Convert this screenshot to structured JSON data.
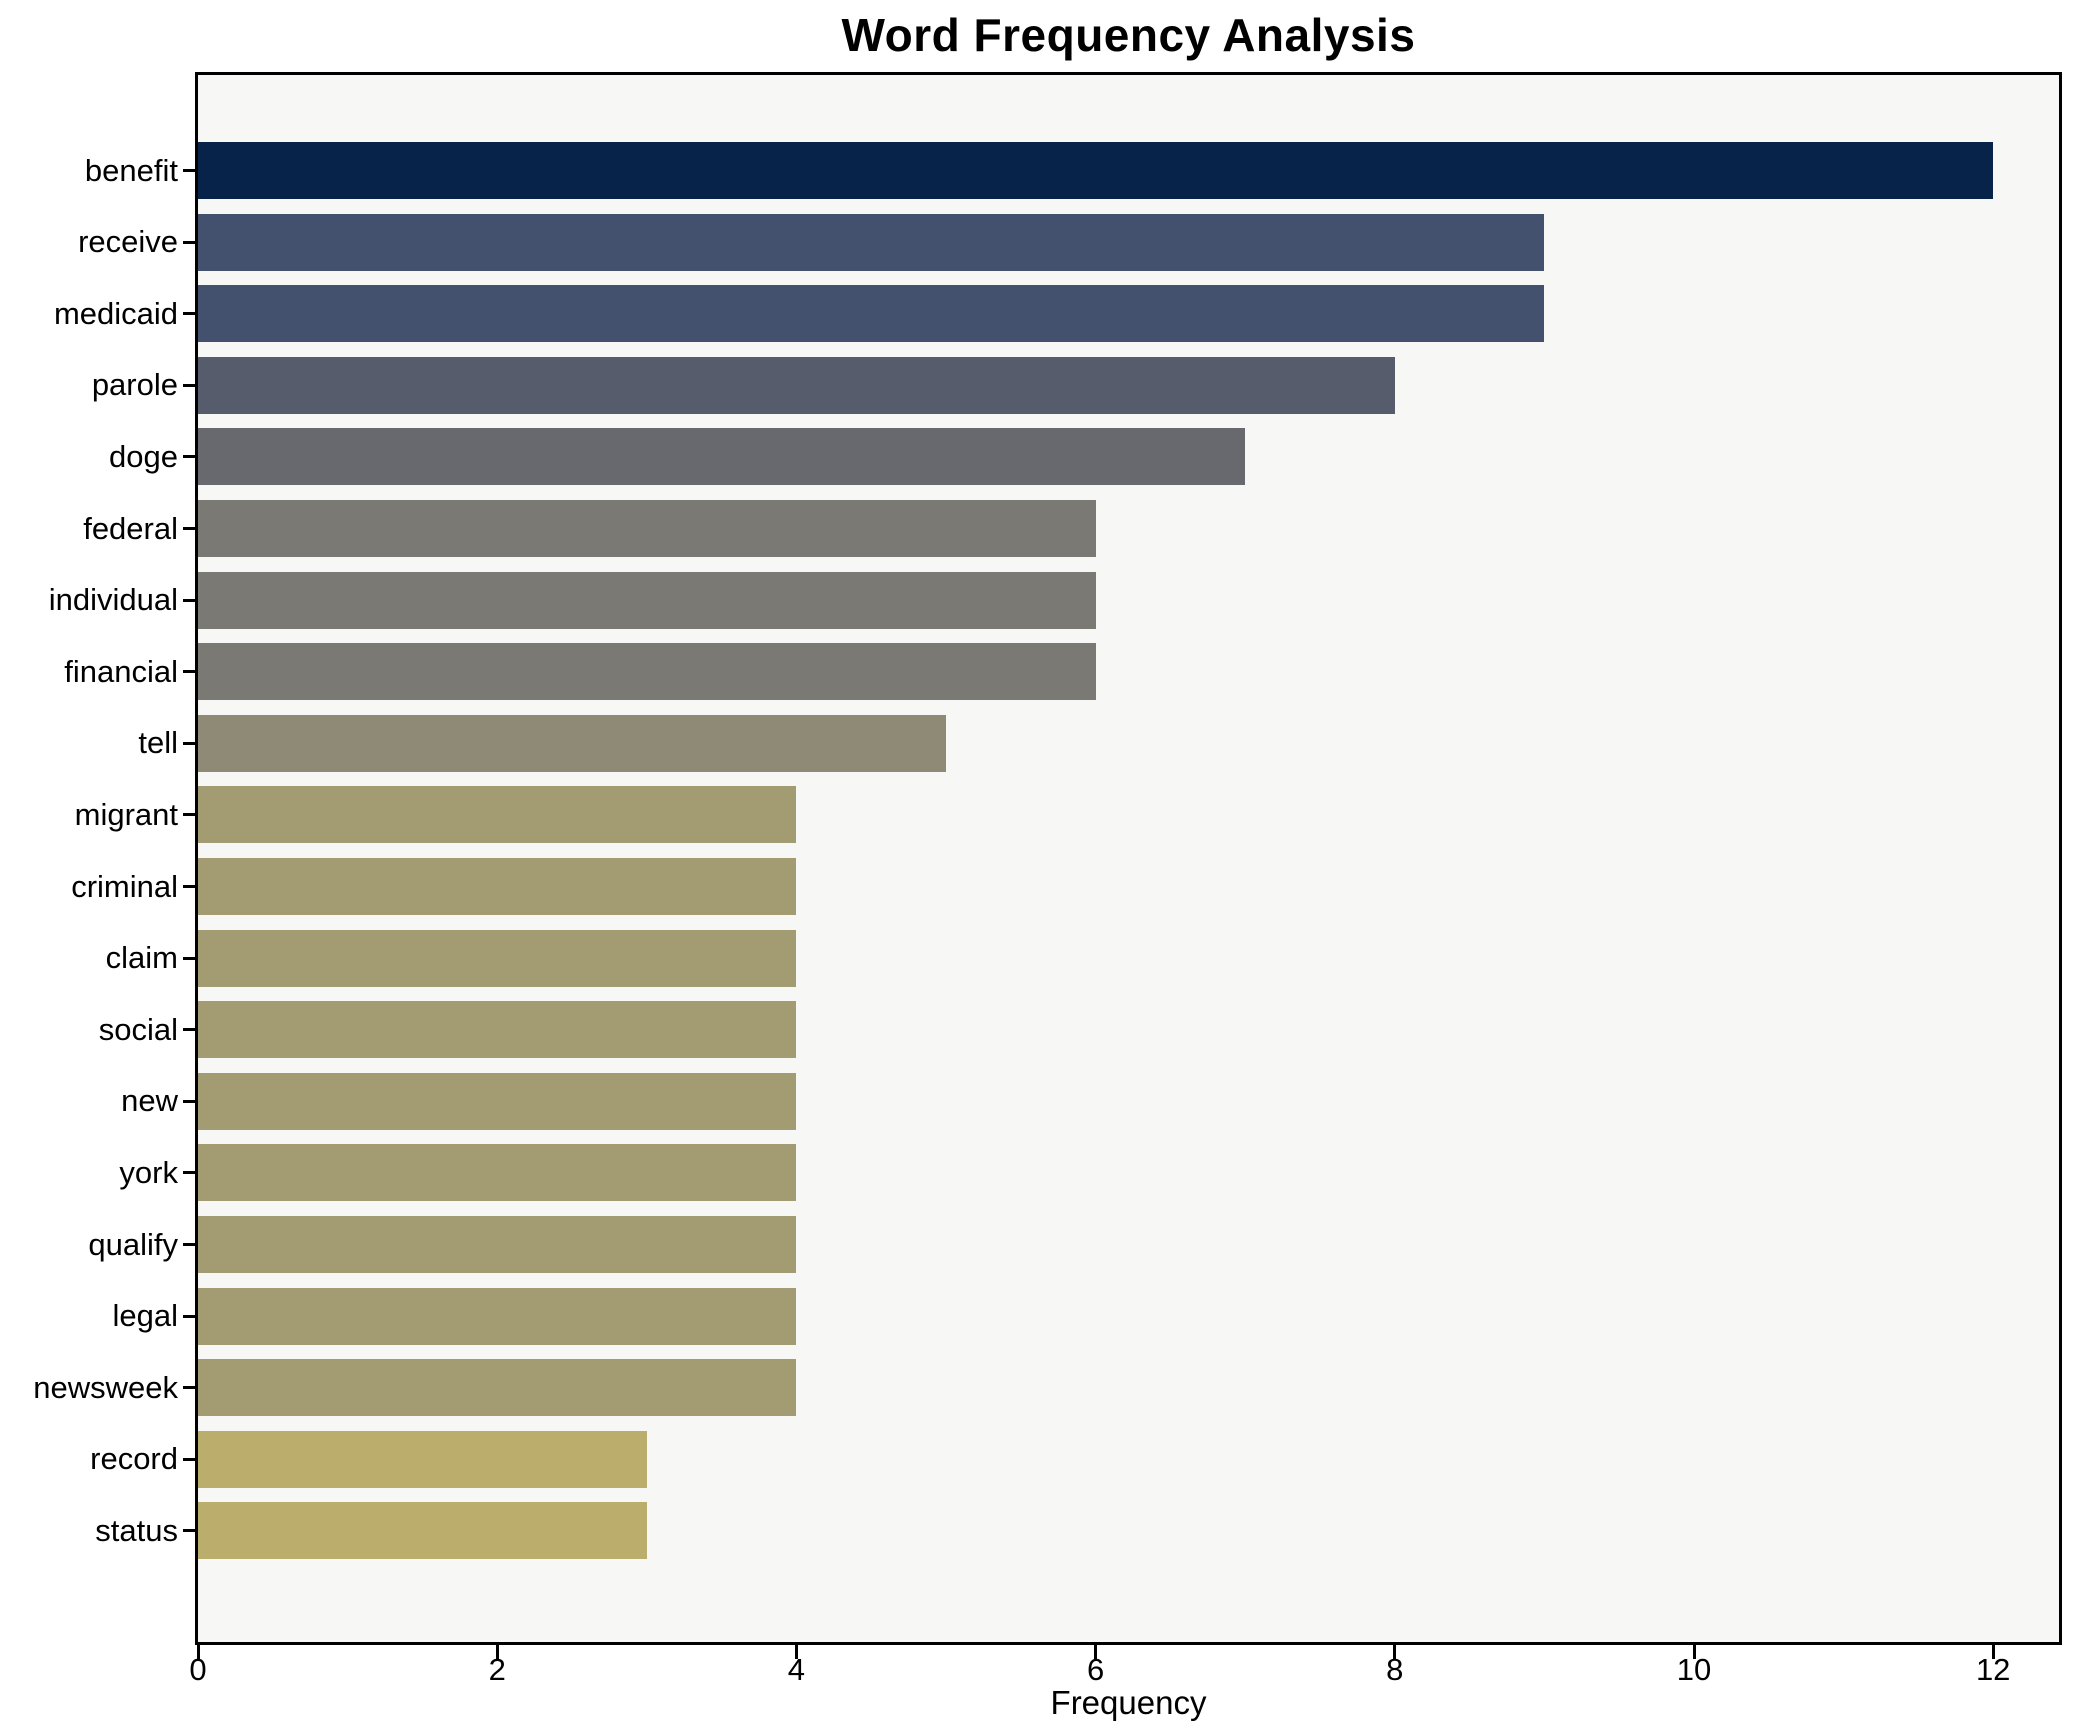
{
  "chart_data": {
    "type": "bar",
    "orientation": "horizontal",
    "title": "Word Frequency Analysis",
    "xlabel": "Frequency",
    "ylabel": "",
    "categories": [
      "benefit",
      "receive",
      "medicaid",
      "parole",
      "doge",
      "federal",
      "individual",
      "financial",
      "tell",
      "migrant",
      "criminal",
      "claim",
      "social",
      "new",
      "york",
      "qualify",
      "legal",
      "newsweek",
      "record",
      "status"
    ],
    "values": [
      12,
      9,
      9,
      8,
      7,
      6,
      6,
      6,
      5,
      4,
      4,
      4,
      4,
      4,
      4,
      4,
      4,
      4,
      3,
      3
    ],
    "bar_colors": [
      "#08234a",
      "#43506e",
      "#43506e",
      "#565c6b",
      "#68696e",
      "#7a7974",
      "#7a7974",
      "#7a7974",
      "#8f8a76",
      "#a39b72",
      "#a39b72",
      "#a39b72",
      "#a39b72",
      "#a39b72",
      "#a39b72",
      "#a39b72",
      "#a39b72",
      "#a39b72",
      "#bbad6c",
      "#bbad6c"
    ],
    "x_tick_labels": [
      "0",
      "2",
      "4",
      "6",
      "8",
      "10",
      "12"
    ],
    "x_tick_values": [
      0,
      2,
      4,
      6,
      8,
      10,
      12
    ],
    "xlim": [
      0,
      12.46
    ],
    "grid": false,
    "legend": null,
    "colors": {
      "figure_bg": "#ffffff",
      "plot_bg": "#f7f7f5",
      "spine": "#000000",
      "text": "#000000"
    }
  }
}
